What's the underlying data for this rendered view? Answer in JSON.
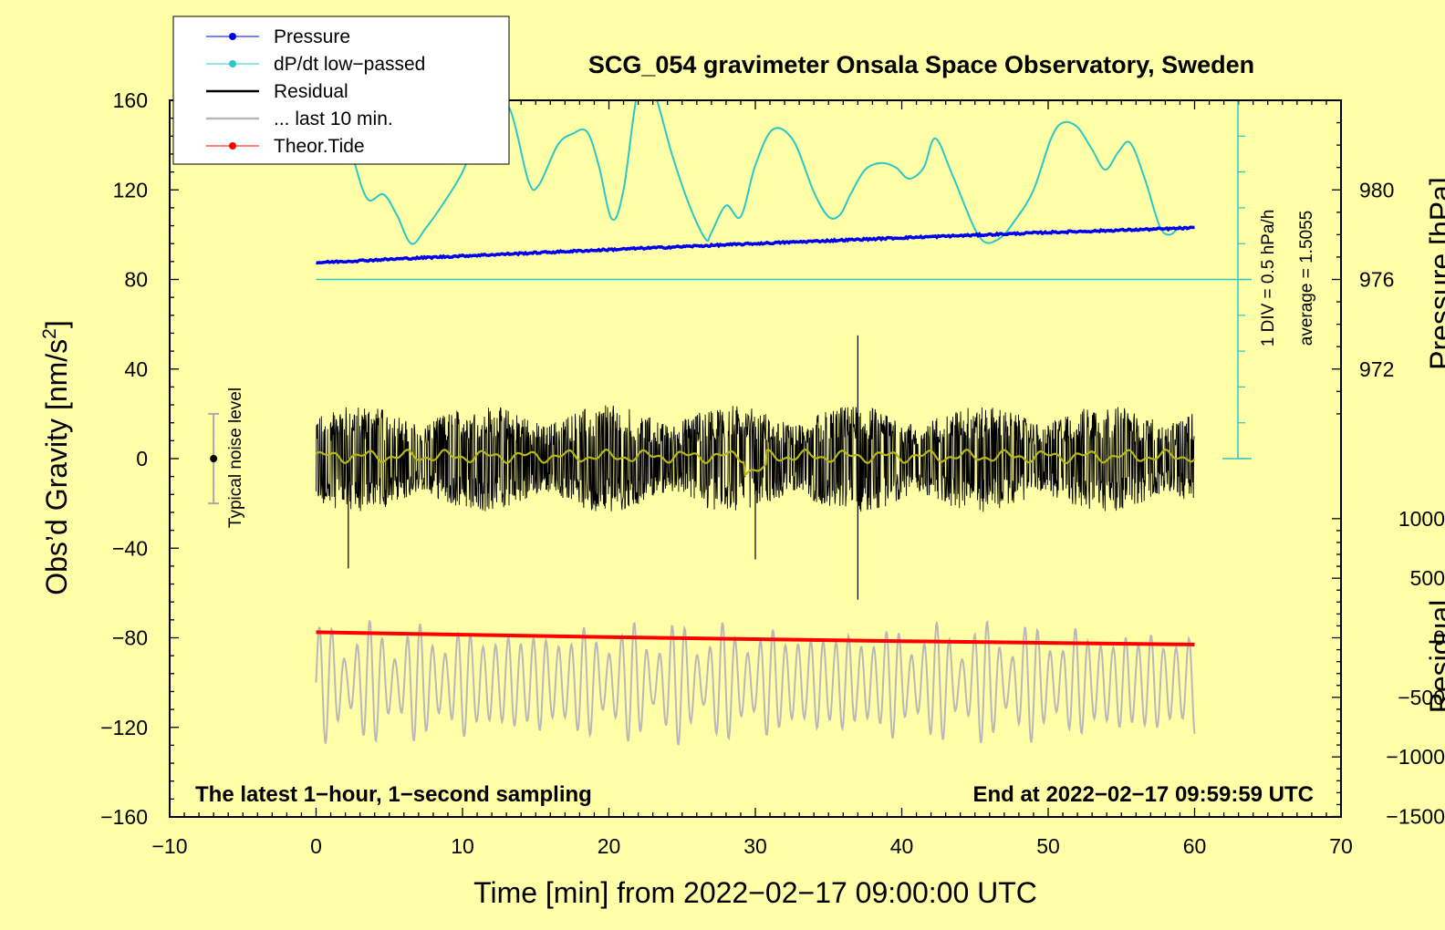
{
  "chart_data": {
    "type": "line",
    "title": "SCG_054 gravimeter Onsala Space Observatory, Sweden",
    "xlabel": "Time [min] from 2022−02−17 09:00:00 UTC",
    "ylabel_prefix": "Obs’d Gravity [nm/s",
    "ylabel_sup": "2",
    "ylabel_suffix": "]",
    "xlim": [
      -10,
      70
    ],
    "ylim": [
      -160,
      160
    ],
    "x_ticks": [
      -10,
      0,
      10,
      20,
      30,
      40,
      50,
      60,
      70
    ],
    "x_tick_labels": [
      "−10",
      "0",
      "10",
      "20",
      "30",
      "40",
      "50",
      "60",
      "70"
    ],
    "y_ticks": [
      160,
      120,
      80,
      40,
      0,
      -40,
      -80,
      -120,
      -160
    ],
    "y_tick_labels": [
      "160",
      "120",
      "80",
      "40",
      "0",
      "−40",
      "−80",
      "−120",
      "−160"
    ],
    "right_pressure_ticks": [
      980,
      976,
      972
    ],
    "right_pressure_labels": [
      "980",
      "976",
      "972"
    ],
    "right_pressure_axis_label": "Pressure [hPa]",
    "right_residual_ticks": [
      1000,
      500,
      0,
      -500,
      -1000,
      -1500
    ],
    "right_residual_labels": [
      "1000",
      "500",
      "0",
      "−500",
      "−1000",
      "−1500"
    ],
    "right_residual_axis_label": "Residual",
    "annotation_bottom_left": "The latest 1−hour, 1−second sampling",
    "annotation_bottom_right": "End at 2022−02−17 09:59:59 UTC",
    "noise_label": "Typical noise level",
    "noise_bar": {
      "x": -7,
      "center": 0,
      "half_range": 20
    },
    "dpdt_scale_label": "1 DIV = 0.5 hPa/h",
    "dpdt_average_label": "average = 1.5055",
    "dpdt_baseline_y": 80,
    "legend": [
      {
        "name": "Pressure",
        "color": "#0000ee"
      },
      {
        "name": "dP/dt low−passed",
        "color": "#2ac8c8"
      },
      {
        "name": "Residual",
        "color": "#000000"
      },
      {
        "name": "... last 10 min.",
        "color": "#b8b8b8"
      },
      {
        "name": "Theor.Tide",
        "color": "#ff0000"
      }
    ],
    "series": [
      {
        "name": "Pressure",
        "color": "#0000ee",
        "x": [
          0,
          10,
          20,
          30,
          40,
          50,
          60
        ],
        "values": [
          87.5,
          90.5,
          93.3,
          96,
          98.6,
          101,
          103
        ]
      },
      {
        "name": "dP/dt low−passed",
        "color": "#2ac8c8",
        "x": [
          1.5,
          2.5,
          3.5,
          4.6,
          5.5,
          6.5,
          7.5,
          8.8,
          10,
          11,
          12,
          13.3,
          14.5,
          15.2,
          16.5,
          17.5,
          18.5,
          19.3,
          20.2,
          21,
          22,
          23,
          24.3,
          25.5,
          26.6,
          27,
          28,
          29,
          30,
          31.2,
          32.6,
          34,
          35,
          35.8,
          36.5,
          37.5,
          38.6,
          39.6,
          40.5,
          41.5,
          42.3,
          43.5,
          45.3,
          46.6,
          47.8,
          49,
          50.2,
          51,
          52,
          53,
          53.9,
          54.8,
          55.6,
          56.6,
          57.6,
          58.3,
          59
        ],
        "values": [
          160,
          135,
          116,
          118,
          109,
          96,
          103,
          115,
          128,
          145,
          165,
          155,
          124,
          122,
          140,
          145,
          146,
          131,
          107,
          120,
          165,
          165,
          136,
          113,
          98,
          101,
          113,
          108,
          131,
          147,
          142,
          119,
          108,
          109,
          118,
          129,
          132,
          130,
          125,
          130,
          143,
          126,
          99,
          98,
          107,
          120,
          143,
          150,
          148,
          138,
          129,
          137,
          141,
          125,
          104,
          100,
          104
        ]
      },
      {
        "name": "Theor.Tide",
        "color": "#ff0000",
        "x": [
          0,
          10,
          20,
          30,
          40,
          50,
          60
        ],
        "values": [
          -77.5,
          -78.6,
          -79.7,
          -80.6,
          -81.5,
          -82.3,
          -83
        ]
      },
      {
        "name": "Residual",
        "color": "#000000",
        "x_range": [
          0,
          60
        ],
        "center": 0,
        "amplitude_typical": 17,
        "spikes": [
          {
            "x": 37,
            "min": -63,
            "max": 55
          },
          {
            "x": 2.2,
            "min": -49,
            "max": 0
          },
          {
            "x": 30,
            "min": -45,
            "max": 0
          }
        ]
      },
      {
        "name": "Residual low−passed",
        "color": "#b8b814",
        "x_range": [
          0,
          60
        ],
        "center": 1
      }
    ],
    "last_10_min": {
      "x_range": [
        0,
        60
      ],
      "center": -100,
      "amplitude": 28,
      "color": "#b8b8b8"
    }
  }
}
